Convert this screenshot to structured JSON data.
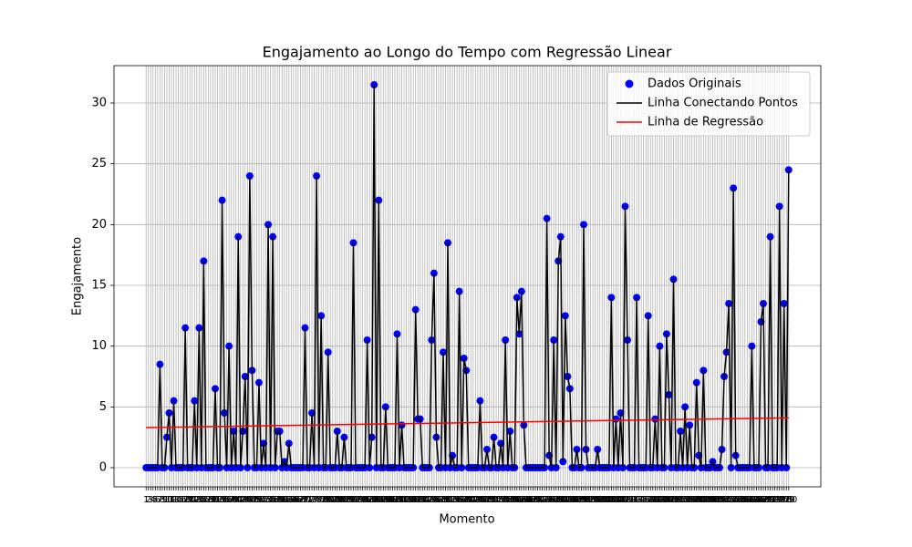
{
  "chart_data": {
    "type": "scatter",
    "title": "Engajamento ao Longo do Tempo com Regressão Linear",
    "x_label": "Momento",
    "y_label": "Engajamento",
    "x": [
      1,
      2,
      3,
      4,
      5,
      6,
      7,
      8,
      9,
      10,
      11,
      12,
      13,
      14,
      15,
      16,
      17,
      18,
      19,
      20,
      21,
      22,
      23,
      24,
      25,
      26,
      27,
      28,
      29,
      30,
      31,
      32,
      33,
      34,
      35,
      36,
      37,
      38,
      39,
      40,
      41,
      42,
      43,
      44,
      45,
      46,
      47,
      48,
      49,
      50,
      51,
      52,
      53,
      54,
      55,
      56,
      57,
      58,
      59,
      60,
      61,
      62,
      63,
      64,
      65,
      66,
      67,
      68,
      69,
      70,
      71,
      72,
      73,
      74,
      75,
      76,
      77,
      78,
      79,
      80,
      81,
      82,
      83,
      84,
      85,
      86,
      87,
      88,
      89,
      90,
      91,
      92,
      93,
      94,
      95,
      96,
      97,
      98,
      99,
      100,
      101,
      102,
      103,
      104,
      105,
      106,
      107,
      108,
      109,
      110,
      111,
      112,
      113,
      114,
      115,
      116,
      117,
      118,
      119,
      120,
      121,
      122,
      123,
      124,
      125,
      126,
      127,
      128,
      129,
      130,
      131,
      132,
      133,
      134,
      135,
      136,
      137,
      138,
      139,
      140,
      141,
      142,
      143,
      144,
      145,
      146,
      147,
      148,
      149,
      150,
      151,
      152,
      153,
      154,
      155,
      156,
      157,
      158,
      159,
      160,
      161,
      162,
      163,
      164,
      165,
      166,
      167,
      168,
      169,
      170,
      171,
      172,
      173,
      174,
      175,
      176,
      177,
      178,
      179,
      180,
      181,
      182,
      183,
      184,
      185,
      186,
      187,
      188,
      189,
      190,
      191,
      192,
      193,
      194,
      195,
      196,
      197,
      198,
      199,
      200,
      201,
      202,
      203,
      204,
      205,
      206,
      207,
      208,
      209,
      210,
      211,
      212,
      213,
      214,
      215,
      216,
      217,
      218,
      219,
      220,
      221,
      222,
      223,
      224,
      225,
      226,
      227,
      228,
      229,
      230,
      231,
      232,
      233,
      234,
      235,
      236,
      237,
      238,
      239,
      240,
      241,
      242,
      243,
      244,
      245,
      246,
      247,
      248,
      249,
      250,
      251,
      252,
      253,
      254,
      255,
      256,
      257,
      258,
      259,
      260,
      261,
      262,
      263,
      264,
      265,
      266,
      267,
      268,
      269,
      270,
      271,
      272,
      273,
      274,
      275,
      276,
      277,
      278,
      279,
      280
    ],
    "series": [
      {
        "name": "Dados Originais",
        "color": "#0000ff",
        "type": "scatter",
        "values": [
          0,
          0,
          0,
          0,
          0,
          0,
          8.5,
          0,
          0,
          2.5,
          4.5,
          0,
          5.5,
          0,
          0,
          0,
          0,
          11.5,
          0,
          0,
          0,
          5.5,
          0,
          11.5,
          0,
          17,
          0,
          0,
          0,
          0,
          6.5,
          0,
          0,
          22,
          4.5,
          0,
          10,
          0,
          3,
          0,
          19,
          0,
          3,
          7.5,
          0,
          24,
          8,
          0,
          0,
          7,
          0,
          2,
          0,
          20,
          0,
          19,
          0,
          3,
          3,
          0,
          0.5,
          0,
          2,
          0,
          0,
          0,
          0,
          0,
          0,
          11.5,
          0,
          0,
          4.5,
          0,
          24,
          0,
          12.5,
          0,
          0,
          9.5,
          0,
          0,
          0,
          3,
          0,
          0,
          2.5,
          0,
          0,
          0,
          18.5,
          0,
          0,
          0,
          0,
          0,
          10.5,
          0,
          2.5,
          31.5,
          0,
          22,
          0,
          0,
          5,
          0,
          0,
          0,
          0,
          11,
          0,
          3.5,
          0,
          0,
          0,
          0,
          0,
          13,
          4,
          4,
          0,
          0,
          0,
          0,
          10.5,
          16,
          2.5,
          0,
          0,
          9.5,
          0,
          18.5,
          0,
          1,
          0,
          0,
          14.5,
          0,
          9,
          8,
          0,
          0,
          0,
          0,
          0,
          5.5,
          0,
          0,
          1.5,
          0,
          0,
          2.5,
          0,
          0,
          2,
          0,
          10.5,
          0,
          3,
          0,
          0,
          14,
          11,
          14.5,
          3.5,
          0,
          0,
          0,
          0,
          0,
          0,
          0,
          0,
          0,
          20.5,
          1,
          0,
          10.5,
          0,
          17,
          19,
          0.5,
          12.5,
          7.5,
          6.5,
          0,
          0,
          1.5,
          0,
          0,
          20,
          1.5,
          0,
          0,
          0,
          0,
          1.5,
          0,
          0,
          0,
          0,
          0,
          14,
          0,
          4,
          0,
          4.5,
          0,
          21.5,
          10.5,
          0,
          0,
          0,
          14,
          0,
          0,
          0,
          0,
          12.5,
          0,
          0,
          4,
          0,
          10,
          0,
          0,
          11,
          6,
          0,
          15.5,
          0,
          0,
          3,
          0,
          5,
          0,
          3.5,
          0,
          0,
          7,
          1,
          0,
          8,
          0,
          0,
          0,
          0.5,
          0,
          0,
          0,
          1.5,
          7.5,
          9.5,
          13.5,
          0,
          23,
          1,
          0,
          0,
          0,
          0,
          0,
          0,
          10,
          0,
          0,
          0,
          12,
          13.5,
          0,
          0,
          19,
          0,
          0,
          0,
          21.5,
          0,
          13.5,
          0,
          24.5
        ]
      },
      {
        "name": "Linha Conectando Pontos",
        "color": "#000000",
        "type": "line"
      },
      {
        "name": "Linha de Regressão",
        "color": "#ff0000",
        "type": "line",
        "x": [
          1,
          280
        ],
        "values": [
          3.3,
          4.1
        ]
      }
    ],
    "xlim": [
      -12.95,
      293.95
    ],
    "ylim": [
      -1.575,
      33.075
    ],
    "yticks": [
      0,
      5,
      10,
      15,
      20,
      25,
      30
    ],
    "grid": true,
    "legend": "upper right"
  }
}
